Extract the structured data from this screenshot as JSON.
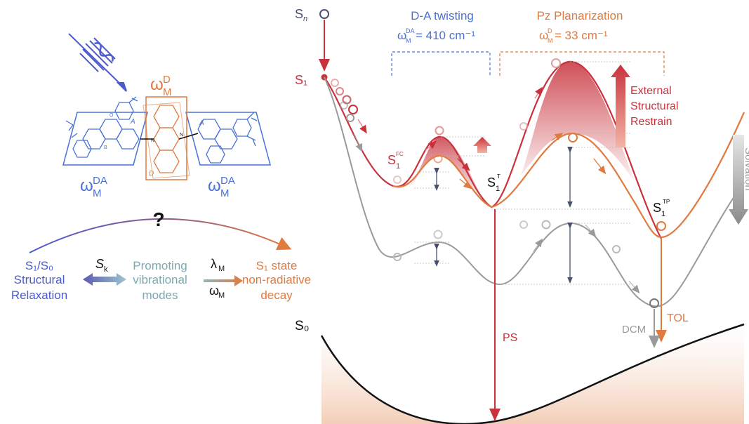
{
  "colors": {
    "blue": "#4a72d6",
    "blue_dark": "#5a5ab0",
    "orange": "#e07a3e",
    "red": "#c8323c",
    "gray": "#9a9a9a",
    "teal": "#6fa0a8",
    "navy": "#4a5070",
    "black": "#111111"
  },
  "labels": {
    "sn": "S",
    "sn_sub": "n",
    "s1": "S₁",
    "s0": "S₀",
    "da_twisting": "D-A twisting",
    "da_freq_omega": "ω",
    "da_freq_sup": "DA",
    "da_freq_sub": "M",
    "da_freq_value": " = 410 cm⁻¹",
    "pz_planarization": "Pz Planarization",
    "pz_freq_omega": "ω",
    "pz_freq_sup": "D",
    "pz_freq_sub": "M",
    "pz_freq_value": " = 33 cm⁻¹",
    "external": "External",
    "structural": "Structural",
    "restrain": "Restrain",
    "solvation": "Solvation",
    "s1_fc": "S",
    "s1_fc_sub": "1",
    "s1_fc_sup": "FC",
    "s1_t": "S",
    "s1_t_sub": "1",
    "s1_t_sup": "T",
    "s1_tp": "S",
    "s1_tp_sub": "1",
    "s1_tp_sup": "TP",
    "ps": "PS",
    "dcm": "DCM",
    "tol": "TOL",
    "question": "?",
    "mol_omega_d": "ω",
    "mol_omega_d_sup": "D",
    "mol_omega_d_sub": "M",
    "mol_omega_da_left": "ω",
    "mol_omega_da_left_sup": "DA",
    "mol_omega_da_left_sub": "M",
    "mol_omega_da_right": "ω",
    "mol_omega_da_right_sup": "DA",
    "mol_omega_da_right_sub": "M",
    "mol_a_left": "A",
    "mol_a_right": "A",
    "mol_d": "D",
    "mol_n_left": "N",
    "mol_n_right": "N",
    "mol_o": "O",
    "mol_b": "B",
    "left_s1s0": "S₁/S₀",
    "left_structural": "Structural",
    "left_relaxation": "Relaxation",
    "sk": "S",
    "sk_sub": "k",
    "promoting": "Promoting",
    "vibrational": "vibrational",
    "modes": "modes",
    "lambda": "λ",
    "lambda_sub": "M",
    "omega": "ω",
    "omega_sub": "M",
    "s1_state": "S₁ state",
    "non_radiative": "non-radiative",
    "decay": "decay"
  }
}
